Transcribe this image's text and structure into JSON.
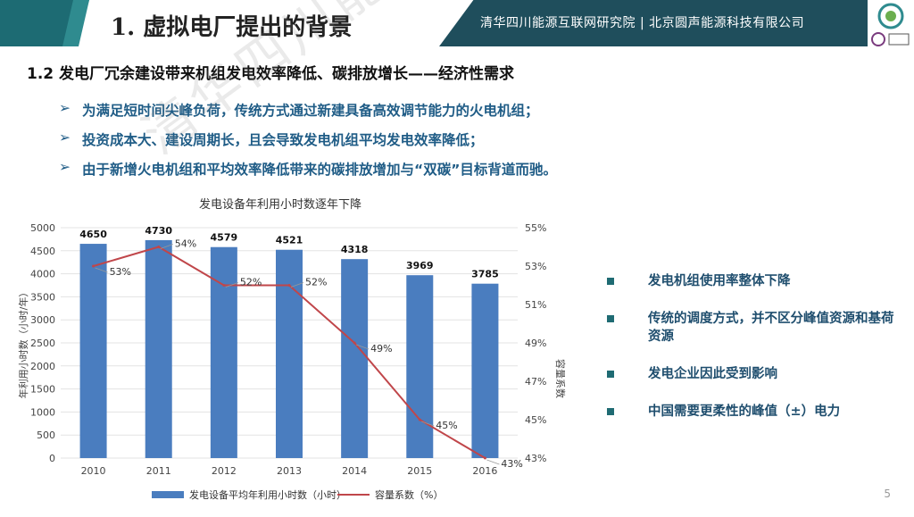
{
  "header": {
    "title": "1. 虚拟电厂提出的背景",
    "banner": "清华四川能源互联网研究院 | 北京圆声能源科技有限公司"
  },
  "subtitle": "1.2  发电厂冗余建设带来机组发电效率降低、碳排放增长——经济性需求",
  "bullets": [
    "为满足短时间尖峰负荷，传统方式通过新建具备高效调节能力的火电机组；",
    "投资成本大、建设周期长，且会导致发电机组平均发电效率降低；",
    "由于新增火电机组和平均效率降低带来的碳排放增加与“双碳”目标背道而驰。"
  ],
  "right_points": [
    "发电机组使用率整体下降",
    "传统的调度方式，并不区分峰值资源和基荷资源",
    "发电企业因此受到影响",
    "中国需要更柔性的峰值（±）电力"
  ],
  "watermark": "清华四川能源互联网研究院",
  "page_number": "5",
  "colors": {
    "teal": "#1d6b73",
    "banner": "#1f4e5c",
    "bar": "#4a7dbf",
    "line": "#c0464a",
    "text_blue": "#1f5c86"
  },
  "chart_data": {
    "type": "bar",
    "title": "发电设备年利用小时数逐年下降",
    "categories": [
      "2010",
      "2011",
      "2012",
      "2013",
      "2014",
      "2015",
      "2016"
    ],
    "series": [
      {
        "name": "发电设备平均年利用小时数（小时）",
        "type": "bar",
        "axis": "left",
        "values": [
          4650,
          4730,
          4579,
          4521,
          4318,
          3969,
          3785
        ]
      },
      {
        "name": "容量系数（%）",
        "type": "line",
        "axis": "right",
        "values": [
          53,
          54,
          52,
          52,
          49,
          45,
          43
        ]
      }
    ],
    "ylabel": "年利用小时数（小时/年）",
    "y2label": "容量系数",
    "ylim": [
      0,
      5000
    ],
    "yticks": [
      "0",
      "500",
      "1000",
      "1500",
      "2000",
      "2500",
      "3000",
      "3500",
      "4000",
      "4500",
      "5000"
    ],
    "y2lim": [
      43,
      55
    ],
    "y2ticks": [
      "43%",
      "45%",
      "47%",
      "49%",
      "51%",
      "53%",
      "55%"
    ],
    "line_labels": [
      "53%",
      "54%",
      "52%",
      "52%",
      "49%",
      "45%",
      "43%"
    ]
  }
}
